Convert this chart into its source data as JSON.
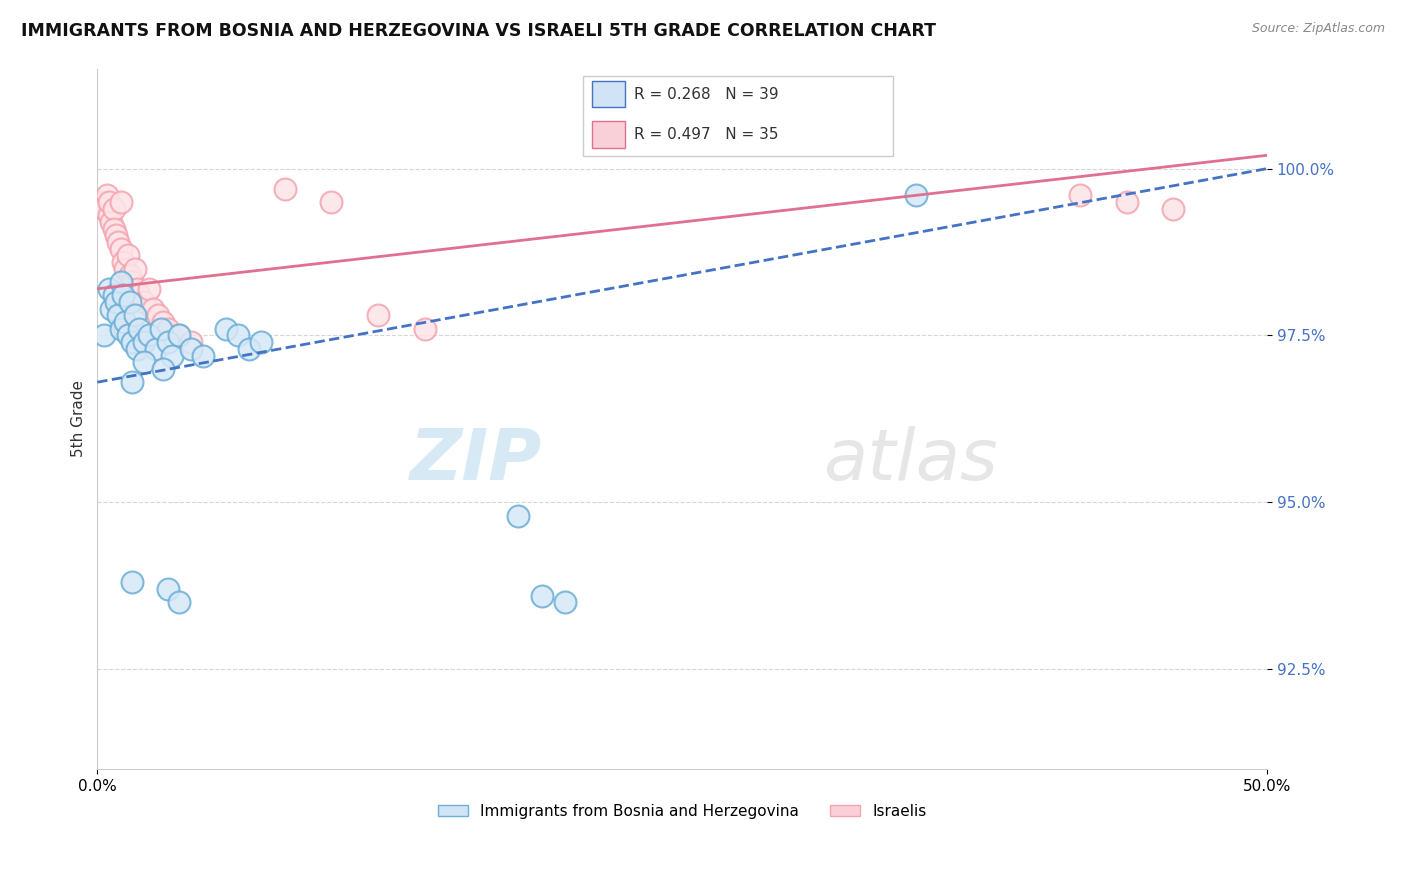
{
  "title": "IMMIGRANTS FROM BOSNIA AND HERZEGOVINA VS ISRAELI 5TH GRADE CORRELATION CHART",
  "source": "Source: ZipAtlas.com",
  "ylabel": "5th Grade",
  "xlim": [
    0.0,
    50.0
  ],
  "ylim": [
    91.0,
    101.5
  ],
  "y_ticks": [
    92.5,
    95.0,
    97.5,
    100.0
  ],
  "y_tick_labels": [
    "92.5%",
    "95.0%",
    "97.5%",
    "100.0%"
  ],
  "legend_label_blue": "Immigrants from Bosnia and Herzegovina",
  "legend_label_pink": "Israelis",
  "r_blue": 0.268,
  "n_blue": 39,
  "r_pink": 0.497,
  "n_pink": 35,
  "blue_color": "#6baed6",
  "pink_color": "#f4a4b0",
  "blue_line_color": "#4472c4",
  "pink_line_color": "#e07090",
  "blue_scatter": [
    [
      0.3,
      97.5
    ],
    [
      0.5,
      98.2
    ],
    [
      0.6,
      97.9
    ],
    [
      0.7,
      98.1
    ],
    [
      0.8,
      98.0
    ],
    [
      0.9,
      97.8
    ],
    [
      1.0,
      98.3
    ],
    [
      1.0,
      97.6
    ],
    [
      1.1,
      98.1
    ],
    [
      1.2,
      97.7
    ],
    [
      1.3,
      97.5
    ],
    [
      1.4,
      98.0
    ],
    [
      1.5,
      97.4
    ],
    [
      1.6,
      97.8
    ],
    [
      1.7,
      97.3
    ],
    [
      1.8,
      97.6
    ],
    [
      2.0,
      97.4
    ],
    [
      2.2,
      97.5
    ],
    [
      2.5,
      97.3
    ],
    [
      2.7,
      97.6
    ],
    [
      3.0,
      97.4
    ],
    [
      3.2,
      97.2
    ],
    [
      3.5,
      97.5
    ],
    [
      4.0,
      97.3
    ],
    [
      4.5,
      97.2
    ],
    [
      5.5,
      97.6
    ],
    [
      6.0,
      97.5
    ],
    [
      6.5,
      97.3
    ],
    [
      7.0,
      97.4
    ],
    [
      1.5,
      96.8
    ],
    [
      1.5,
      93.8
    ],
    [
      3.0,
      93.7
    ],
    [
      3.5,
      93.5
    ],
    [
      18.0,
      94.8
    ],
    [
      19.0,
      93.6
    ],
    [
      20.0,
      93.5
    ],
    [
      35.0,
      99.6
    ],
    [
      2.0,
      97.1
    ],
    [
      2.8,
      97.0
    ]
  ],
  "pink_scatter": [
    [
      0.2,
      99.5
    ],
    [
      0.3,
      99.4
    ],
    [
      0.4,
      99.6
    ],
    [
      0.5,
      99.3
    ],
    [
      0.5,
      99.5
    ],
    [
      0.6,
      99.2
    ],
    [
      0.7,
      99.4
    ],
    [
      0.7,
      99.1
    ],
    [
      0.8,
      99.0
    ],
    [
      0.9,
      98.9
    ],
    [
      1.0,
      98.8
    ],
    [
      1.0,
      99.5
    ],
    [
      1.1,
      98.6
    ],
    [
      1.2,
      98.5
    ],
    [
      1.3,
      98.7
    ],
    [
      1.4,
      98.4
    ],
    [
      1.5,
      98.3
    ],
    [
      1.6,
      98.5
    ],
    [
      1.7,
      98.2
    ],
    [
      1.8,
      98.1
    ],
    [
      2.0,
      98.0
    ],
    [
      2.2,
      98.2
    ],
    [
      2.4,
      97.9
    ],
    [
      2.6,
      97.8
    ],
    [
      2.8,
      97.7
    ],
    [
      3.0,
      97.6
    ],
    [
      3.5,
      97.5
    ],
    [
      4.0,
      97.4
    ],
    [
      8.0,
      99.7
    ],
    [
      10.0,
      99.5
    ],
    [
      42.0,
      99.6
    ],
    [
      44.0,
      99.5
    ],
    [
      46.0,
      99.4
    ],
    [
      12.0,
      97.8
    ],
    [
      14.0,
      97.6
    ]
  ],
  "blue_line": [
    0.0,
    96.8,
    50.0,
    100.0
  ],
  "pink_line": [
    0.0,
    98.2,
    50.0,
    100.2
  ]
}
